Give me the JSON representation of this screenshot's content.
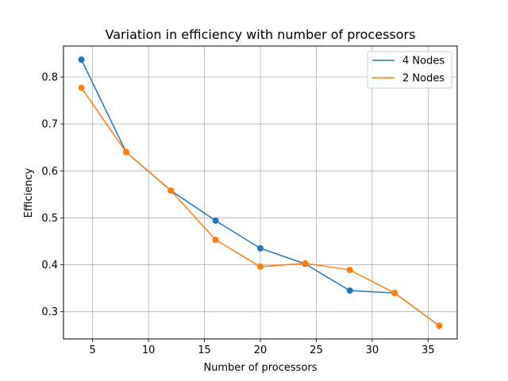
{
  "chart_data": {
    "type": "line",
    "title": "Variation in efficiency with number of processors",
    "xlabel": "Number of processors",
    "ylabel": "Efficiency",
    "xlim": [
      2.4,
      37.6
    ],
    "ylim": [
      0.242,
      0.866
    ],
    "xticks": [
      5,
      10,
      15,
      20,
      25,
      30,
      35
    ],
    "yticks": [
      0.3,
      0.4,
      0.5,
      0.6,
      0.7,
      0.8
    ],
    "grid": true,
    "legend_position": "top-right",
    "series": [
      {
        "name": "4 Nodes",
        "color": "#1f77b4",
        "x": [
          4,
          8,
          12,
          16,
          20,
          24,
          28,
          32,
          36
        ],
        "y": [
          0.837,
          0.64,
          0.558,
          0.494,
          0.435,
          0.402,
          0.345,
          0.34,
          0.27
        ]
      },
      {
        "name": "2 Nodes",
        "color": "#ff7f0e",
        "x": [
          4,
          8,
          12,
          16,
          20,
          24,
          28,
          32,
          36
        ],
        "y": [
          0.777,
          0.64,
          0.558,
          0.453,
          0.396,
          0.403,
          0.389,
          0.34,
          0.27
        ]
      }
    ]
  }
}
